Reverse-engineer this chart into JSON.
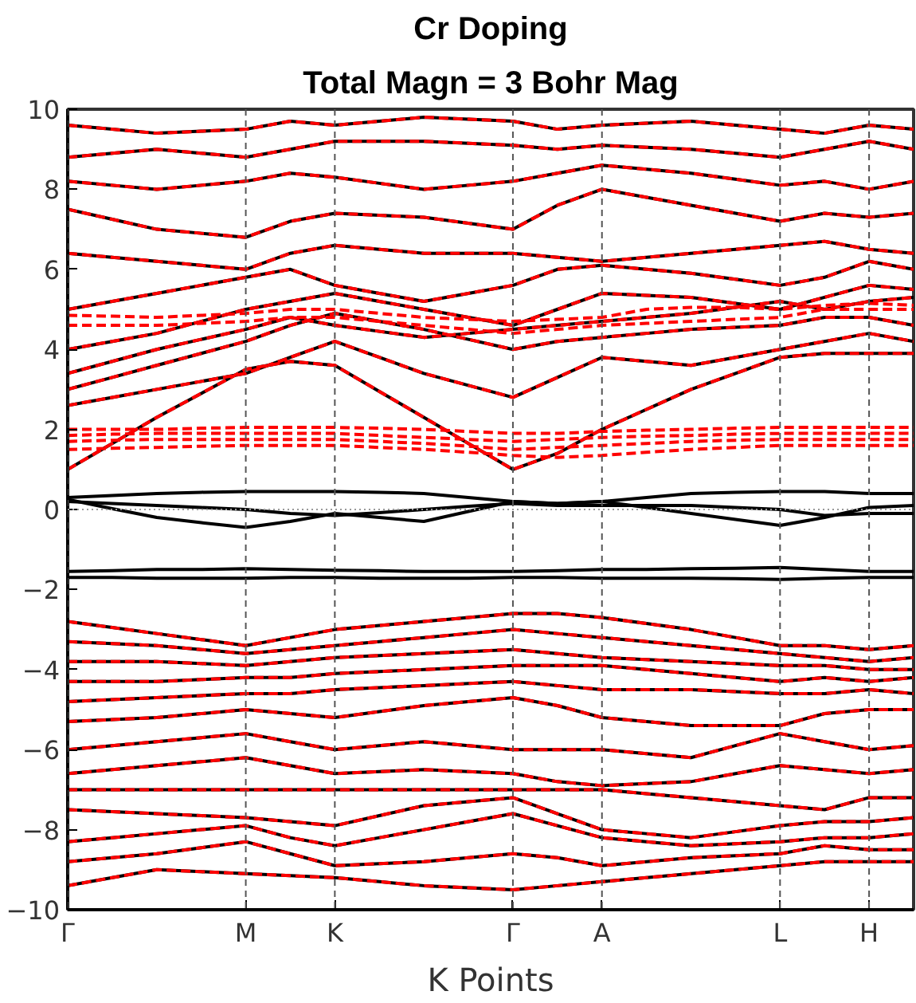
{
  "chart_data": {
    "type": "line",
    "title": "Cr Doping",
    "subtitle": "Total Magn = 3 Bohr Mag",
    "xlabel": "K Points",
    "categories": [
      "Γ",
      null,
      null,
      null,
      "M",
      null,
      "K",
      null,
      null,
      null,
      "Γ",
      null,
      "A",
      null,
      null,
      null,
      "L",
      null,
      "H",
      null
    ],
    "ylim": [
      -10,
      10
    ],
    "yticks": [
      -10,
      -8,
      -6,
      -4,
      -2,
      0,
      2,
      4,
      6,
      8,
      10
    ],
    "grid": "x",
    "ref_lines": [
      {
        "axis": "y",
        "value": 0,
        "color": "#999999",
        "line_style": "dotted"
      }
    ],
    "series": [
      {
        "color": "#000000",
        "line_style": "solid",
        "values": [
          0.3,
          0.35,
          0.4,
          0.43,
          0.45,
          0.45,
          0.45,
          0.43,
          0.4,
          0.3,
          0.2,
          0.15,
          0.2,
          0.3,
          0.4,
          0.43,
          0.45,
          0.45,
          0.4,
          0.4
        ]
      },
      {
        "color": "#000000",
        "line_style": "solid",
        "values": [
          0.25,
          0.02,
          -0.2,
          -0.33,
          -0.45,
          -0.3,
          -0.1,
          -0.2,
          -0.3,
          -0.05,
          0.2,
          0.15,
          0.2,
          0.05,
          -0.1,
          -0.25,
          -0.4,
          -0.2,
          0.05,
          0.1
        ]
      },
      {
        "color": "#000000",
        "line_style": "solid",
        "values": [
          0.2,
          0.15,
          0.1,
          0.05,
          0.0,
          -0.1,
          -0.15,
          -0.08,
          0.0,
          0.08,
          0.15,
          0.1,
          0.1,
          0.1,
          0.1,
          0.05,
          0.0,
          -0.15,
          -0.1,
          -0.1
        ]
      },
      {
        "color": "#000000",
        "line_style": "solid",
        "values": [
          -1.55,
          -1.53,
          -1.5,
          -1.5,
          -1.48,
          -1.5,
          -1.52,
          -1.53,
          -1.55,
          -1.55,
          -1.55,
          -1.53,
          -1.5,
          -1.5,
          -1.48,
          -1.47,
          -1.45,
          -1.5,
          -1.55,
          -1.55
        ]
      },
      {
        "color": "#000000",
        "line_style": "solid",
        "values": [
          -1.7,
          -1.7,
          -1.72,
          -1.72,
          -1.72,
          -1.7,
          -1.7,
          -1.72,
          -1.72,
          -1.72,
          -1.7,
          -1.7,
          -1.72,
          -1.72,
          -1.72,
          -1.73,
          -1.75,
          -1.72,
          -1.7,
          -1.7
        ]
      },
      {
        "color": "#000000",
        "line_style": "solid",
        "values": [
          1.0,
          1.65,
          2.3,
          2.9,
          3.5,
          3.7,
          3.6,
          2.95,
          2.3,
          1.65,
          1.0,
          1.4,
          2.0,
          2.5,
          3.0,
          3.4,
          3.8,
          3.9,
          3.9,
          3.9
        ]
      },
      {
        "color": "#000000",
        "line_style": "solid",
        "values": [
          2.6,
          2.8,
          3.0,
          3.2,
          3.4,
          3.8,
          4.2,
          3.8,
          3.4,
          3.1,
          2.8,
          3.3,
          3.8,
          3.7,
          3.6,
          3.8,
          4.0,
          4.2,
          4.4,
          4.2
        ]
      },
      {
        "color": "#000000",
        "line_style": "solid",
        "values": [
          3.0,
          3.3,
          3.6,
          3.9,
          4.2,
          4.6,
          4.9,
          4.7,
          4.5,
          4.25,
          4.0,
          4.2,
          4.3,
          4.4,
          4.5,
          4.55,
          4.6,
          4.8,
          4.8,
          4.6
        ]
      },
      {
        "color": "#000000",
        "line_style": "solid",
        "values": [
          3.4,
          3.7,
          4.0,
          4.25,
          4.5,
          4.8,
          4.6,
          4.45,
          4.3,
          4.4,
          4.5,
          4.6,
          4.7,
          4.8,
          4.9,
          5.05,
          5.2,
          5.0,
          5.2,
          5.3
        ]
      },
      {
        "color": "#000000",
        "line_style": "solid",
        "values": [
          4.0,
          4.2,
          4.4,
          4.7,
          5.0,
          5.2,
          5.4,
          5.2,
          5.0,
          4.8,
          4.6,
          5.0,
          5.4,
          5.35,
          5.3,
          5.15,
          5.0,
          5.3,
          5.6,
          5.5
        ]
      },
      {
        "color": "#000000",
        "line_style": "solid",
        "values": [
          5.0,
          5.2,
          5.4,
          5.6,
          5.8,
          6.0,
          5.6,
          5.4,
          5.2,
          5.4,
          5.6,
          6.0,
          6.1,
          6.0,
          5.9,
          5.75,
          5.6,
          5.8,
          6.2,
          6.0
        ]
      },
      {
        "color": "#000000",
        "line_style": "solid",
        "values": [
          6.4,
          6.3,
          6.2,
          6.1,
          6.0,
          6.4,
          6.6,
          6.5,
          6.4,
          6.4,
          6.4,
          6.3,
          6.2,
          6.3,
          6.4,
          6.5,
          6.6,
          6.7,
          6.5,
          6.4
        ]
      },
      {
        "color": "#000000",
        "line_style": "solid",
        "values": [
          7.5,
          7.25,
          7.0,
          6.9,
          6.8,
          7.2,
          7.4,
          7.35,
          7.3,
          7.15,
          7.0,
          7.6,
          8.0,
          7.8,
          7.6,
          7.4,
          7.2,
          7.4,
          7.3,
          7.4
        ]
      },
      {
        "color": "#000000",
        "line_style": "solid",
        "values": [
          8.2,
          8.1,
          8.0,
          8.1,
          8.2,
          8.4,
          8.3,
          8.15,
          8.0,
          8.1,
          8.2,
          8.4,
          8.6,
          8.5,
          8.4,
          8.25,
          8.1,
          8.2,
          8.0,
          8.2
        ]
      },
      {
        "color": "#000000",
        "line_style": "solid",
        "values": [
          8.8,
          8.9,
          9.0,
          8.9,
          8.8,
          9.0,
          9.2,
          9.2,
          9.2,
          9.15,
          9.1,
          9.0,
          9.1,
          9.05,
          9.0,
          8.9,
          8.8,
          9.0,
          9.2,
          9.0
        ]
      },
      {
        "color": "#000000",
        "line_style": "solid",
        "values": [
          9.6,
          9.5,
          9.4,
          9.45,
          9.5,
          9.7,
          9.6,
          9.7,
          9.8,
          9.75,
          9.7,
          9.5,
          9.6,
          9.65,
          9.7,
          9.6,
          9.5,
          9.4,
          9.6,
          9.5
        ]
      },
      {
        "color": "#000000",
        "line_style": "solid",
        "values": [
          -2.8,
          -2.95,
          -3.1,
          -3.25,
          -3.4,
          -3.2,
          -3.0,
          -2.9,
          -2.8,
          -2.7,
          -2.6,
          -2.6,
          -2.7,
          -2.85,
          -3.0,
          -3.2,
          -3.4,
          -3.4,
          -3.5,
          -3.4
        ]
      },
      {
        "color": "#000000",
        "line_style": "solid",
        "values": [
          -3.3,
          -3.35,
          -3.4,
          -3.5,
          -3.6,
          -3.5,
          -3.4,
          -3.3,
          -3.2,
          -3.1,
          -3.0,
          -3.1,
          -3.2,
          -3.3,
          -3.4,
          -3.5,
          -3.6,
          -3.7,
          -3.8,
          -3.7
        ]
      },
      {
        "color": "#000000",
        "line_style": "solid",
        "values": [
          -3.8,
          -3.8,
          -3.8,
          -3.85,
          -3.9,
          -3.8,
          -3.7,
          -3.65,
          -3.6,
          -3.55,
          -3.5,
          -3.6,
          -3.7,
          -3.75,
          -3.8,
          -3.85,
          -3.9,
          -3.9,
          -4.0,
          -4.0
        ]
      },
      {
        "color": "#000000",
        "line_style": "solid",
        "values": [
          -4.3,
          -4.3,
          -4.3,
          -4.25,
          -4.2,
          -4.2,
          -4.1,
          -4.05,
          -4.0,
          -3.95,
          -3.9,
          -3.9,
          -3.9,
          -4.0,
          -4.1,
          -4.2,
          -4.3,
          -4.2,
          -4.3,
          -4.2
        ]
      },
      {
        "color": "#000000",
        "line_style": "solid",
        "values": [
          -4.8,
          -4.75,
          -4.7,
          -4.65,
          -4.6,
          -4.6,
          -4.5,
          -4.45,
          -4.4,
          -4.35,
          -4.3,
          -4.4,
          -4.5,
          -4.5,
          -4.5,
          -4.55,
          -4.6,
          -4.6,
          -4.5,
          -4.6
        ]
      },
      {
        "color": "#000000",
        "line_style": "solid",
        "values": [
          -5.3,
          -5.25,
          -5.2,
          -5.1,
          -5.0,
          -5.1,
          -5.2,
          -5.05,
          -4.9,
          -4.8,
          -4.7,
          -4.9,
          -5.2,
          -5.3,
          -5.4,
          -5.4,
          -5.4,
          -5.1,
          -5.0,
          -5.0
        ]
      },
      {
        "color": "#000000",
        "line_style": "solid",
        "values": [
          -6.0,
          -5.9,
          -5.8,
          -5.7,
          -5.6,
          -5.8,
          -6.0,
          -5.9,
          -5.8,
          -5.9,
          -6.0,
          -6.0,
          -6.0,
          -6.1,
          -6.2,
          -5.9,
          -5.6,
          -5.8,
          -6.0,
          -5.9
        ]
      },
      {
        "color": "#000000",
        "line_style": "solid",
        "values": [
          -6.6,
          -6.5,
          -6.4,
          -6.3,
          -6.2,
          -6.4,
          -6.6,
          -6.55,
          -6.5,
          -6.55,
          -6.6,
          -6.8,
          -6.9,
          -6.85,
          -6.8,
          -6.6,
          -6.4,
          -6.5,
          -6.6,
          -6.5
        ]
      },
      {
        "color": "#000000",
        "line_style": "solid",
        "values": [
          -7.0,
          -7.0,
          -7.0,
          -7.0,
          -7.0,
          -7.0,
          -7.0,
          -7.0,
          -7.0,
          -7.0,
          -7.0,
          -7.0,
          -7.0,
          -7.1,
          -7.2,
          -7.3,
          -7.4,
          -7.5,
          -7.2,
          -7.2
        ]
      },
      {
        "color": "#000000",
        "line_style": "solid",
        "values": [
          -7.5,
          -7.55,
          -7.6,
          -7.65,
          -7.7,
          -7.8,
          -7.9,
          -7.65,
          -7.4,
          -7.3,
          -7.2,
          -7.6,
          -8.0,
          -8.1,
          -8.2,
          -8.05,
          -7.9,
          -7.8,
          -7.8,
          -7.7
        ]
      },
      {
        "color": "#000000",
        "line_style": "solid",
        "values": [
          -8.3,
          -8.2,
          -8.1,
          -8.0,
          -7.9,
          -8.2,
          -8.4,
          -8.2,
          -8.0,
          -7.8,
          -7.6,
          -7.9,
          -8.2,
          -8.3,
          -8.4,
          -8.35,
          -8.3,
          -8.2,
          -8.2,
          -8.1
        ]
      },
      {
        "color": "#000000",
        "line_style": "solid",
        "values": [
          -8.8,
          -8.7,
          -8.6,
          -8.45,
          -8.3,
          -8.6,
          -8.9,
          -8.85,
          -8.8,
          -8.7,
          -8.6,
          -8.7,
          -8.9,
          -8.8,
          -8.7,
          -8.65,
          -8.6,
          -8.4,
          -8.5,
          -8.5
        ]
      },
      {
        "color": "#000000",
        "line_style": "solid",
        "values": [
          -9.4,
          -9.2,
          -9.0,
          -9.05,
          -9.1,
          -9.15,
          -9.2,
          -9.3,
          -9.4,
          -9.45,
          -9.5,
          -9.4,
          -9.3,
          -9.2,
          -9.1,
          -9.0,
          -8.9,
          -8.8,
          -8.8,
          -8.8
        ]
      },
      {
        "color": "#ff0000",
        "line_style": "dashed",
        "values": [
          2.0,
          2.0,
          2.0,
          2.03,
          2.05,
          2.05,
          2.05,
          2.03,
          2.0,
          1.95,
          1.9,
          1.9,
          1.95,
          1.98,
          2.0,
          2.03,
          2.05,
          2.05,
          2.05,
          2.05
        ]
      },
      {
        "color": "#ff0000",
        "line_style": "dashed",
        "values": [
          1.85,
          1.88,
          1.9,
          1.9,
          1.9,
          1.9,
          1.9,
          1.85,
          1.8,
          1.75,
          1.7,
          1.75,
          1.8,
          1.83,
          1.85,
          1.88,
          1.9,
          1.9,
          1.9,
          1.9
        ]
      },
      {
        "color": "#ff0000",
        "line_style": "dashed",
        "values": [
          1.7,
          1.73,
          1.75,
          1.75,
          1.75,
          1.75,
          1.75,
          1.7,
          1.65,
          1.58,
          1.5,
          1.55,
          1.6,
          1.65,
          1.7,
          1.73,
          1.75,
          1.75,
          1.75,
          1.75
        ]
      },
      {
        "color": "#ff0000",
        "line_style": "dashed",
        "values": [
          1.5,
          1.53,
          1.55,
          1.58,
          1.6,
          1.6,
          1.6,
          1.55,
          1.5,
          1.43,
          1.35,
          1.3,
          1.35,
          1.43,
          1.5,
          1.55,
          1.6,
          1.6,
          1.6,
          1.6
        ]
      },
      {
        "color": "#ff0000",
        "line_style": "dashed",
        "values": [
          4.6,
          4.6,
          4.6,
          4.65,
          4.7,
          4.8,
          4.8,
          4.7,
          4.6,
          4.5,
          4.4,
          4.5,
          4.6,
          4.65,
          4.7,
          4.75,
          4.8,
          5.0,
          5.0,
          5.0
        ]
      },
      {
        "color": "#ff0000",
        "line_style": "dashed",
        "values": [
          4.85,
          4.83,
          4.8,
          4.85,
          4.9,
          5.0,
          5.0,
          4.9,
          4.8,
          4.75,
          4.7,
          4.75,
          4.8,
          5.0,
          5.05,
          5.05,
          5.0,
          5.1,
          5.15,
          5.1
        ]
      },
      {
        "color": "#ff0000",
        "line_style": "dashed",
        "values": [
          1.0,
          1.65,
          2.3,
          2.9,
          3.5,
          3.7,
          3.6,
          2.95,
          2.3,
          1.65,
          1.0,
          1.4,
          2.0,
          2.5,
          3.0,
          3.4,
          3.8,
          3.9,
          3.9,
          3.9
        ]
      },
      {
        "color": "#ff0000",
        "line_style": "dashed",
        "values": [
          2.6,
          2.8,
          3.0,
          3.2,
          3.4,
          3.8,
          4.2,
          3.8,
          3.4,
          3.1,
          2.8,
          3.3,
          3.8,
          3.7,
          3.6,
          3.8,
          4.0,
          4.2,
          4.4,
          4.2
        ]
      },
      {
        "color": "#ff0000",
        "line_style": "dashed",
        "values": [
          3.0,
          3.3,
          3.6,
          3.9,
          4.2,
          4.6,
          4.9,
          4.7,
          4.5,
          4.25,
          4.0,
          4.2,
          4.3,
          4.4,
          4.5,
          4.55,
          4.6,
          4.8,
          4.8,
          4.6
        ]
      },
      {
        "color": "#ff0000",
        "line_style": "dashed",
        "values": [
          3.4,
          3.7,
          4.0,
          4.25,
          4.5,
          4.8,
          4.6,
          4.45,
          4.3,
          4.4,
          4.5,
          4.6,
          4.7,
          4.8,
          4.9,
          5.05,
          5.2,
          5.0,
          5.2,
          5.3
        ]
      },
      {
        "color": "#ff0000",
        "line_style": "dashed",
        "values": [
          4.0,
          4.2,
          4.4,
          4.7,
          5.0,
          5.2,
          5.4,
          5.2,
          5.0,
          4.8,
          4.6,
          5.0,
          5.4,
          5.35,
          5.3,
          5.15,
          5.0,
          5.3,
          5.6,
          5.5
        ]
      },
      {
        "color": "#ff0000",
        "line_style": "dashed",
        "values": [
          5.0,
          5.2,
          5.4,
          5.6,
          5.8,
          6.0,
          5.6,
          5.4,
          5.2,
          5.4,
          5.6,
          6.0,
          6.1,
          6.0,
          5.9,
          5.75,
          5.6,
          5.8,
          6.2,
          6.0
        ]
      },
      {
        "color": "#ff0000",
        "line_style": "dashed",
        "values": [
          6.4,
          6.3,
          6.2,
          6.1,
          6.0,
          6.4,
          6.6,
          6.5,
          6.4,
          6.4,
          6.4,
          6.3,
          6.2,
          6.3,
          6.4,
          6.5,
          6.6,
          6.7,
          6.5,
          6.4
        ]
      },
      {
        "color": "#ff0000",
        "line_style": "dashed",
        "values": [
          7.5,
          7.25,
          7.0,
          6.9,
          6.8,
          7.2,
          7.4,
          7.35,
          7.3,
          7.15,
          7.0,
          7.6,
          8.0,
          7.8,
          7.6,
          7.4,
          7.2,
          7.4,
          7.3,
          7.4
        ]
      },
      {
        "color": "#ff0000",
        "line_style": "dashed",
        "values": [
          8.2,
          8.1,
          8.0,
          8.1,
          8.2,
          8.4,
          8.3,
          8.15,
          8.0,
          8.1,
          8.2,
          8.4,
          8.6,
          8.5,
          8.4,
          8.25,
          8.1,
          8.2,
          8.0,
          8.2
        ]
      },
      {
        "color": "#ff0000",
        "line_style": "dashed",
        "values": [
          8.8,
          8.9,
          9.0,
          8.9,
          8.8,
          9.0,
          9.2,
          9.2,
          9.2,
          9.15,
          9.1,
          9.0,
          9.1,
          9.05,
          9.0,
          8.9,
          8.8,
          9.0,
          9.2,
          9.0
        ]
      },
      {
        "color": "#ff0000",
        "line_style": "dashed",
        "values": [
          9.6,
          9.5,
          9.4,
          9.45,
          9.5,
          9.7,
          9.6,
          9.7,
          9.8,
          9.75,
          9.7,
          9.5,
          9.6,
          9.65,
          9.7,
          9.6,
          9.5,
          9.4,
          9.6,
          9.5
        ]
      },
      {
        "color": "#ff0000",
        "line_style": "dashed",
        "values": [
          -2.8,
          -2.95,
          -3.1,
          -3.25,
          -3.4,
          -3.2,
          -3.0,
          -2.9,
          -2.8,
          -2.7,
          -2.6,
          -2.6,
          -2.7,
          -2.85,
          -3.0,
          -3.2,
          -3.4,
          -3.4,
          -3.5,
          -3.4
        ]
      },
      {
        "color": "#ff0000",
        "line_style": "dashed",
        "values": [
          -3.3,
          -3.35,
          -3.4,
          -3.5,
          -3.6,
          -3.5,
          -3.4,
          -3.3,
          -3.2,
          -3.1,
          -3.0,
          -3.1,
          -3.2,
          -3.3,
          -3.4,
          -3.5,
          -3.6,
          -3.7,
          -3.8,
          -3.7
        ]
      },
      {
        "color": "#ff0000",
        "line_style": "dashed",
        "values": [
          -3.8,
          -3.8,
          -3.8,
          -3.85,
          -3.9,
          -3.8,
          -3.7,
          -3.65,
          -3.6,
          -3.55,
          -3.5,
          -3.6,
          -3.7,
          -3.75,
          -3.8,
          -3.85,
          -3.9,
          -3.9,
          -4.0,
          -4.0
        ]
      },
      {
        "color": "#ff0000",
        "line_style": "dashed",
        "values": [
          -4.3,
          -4.3,
          -4.3,
          -4.25,
          -4.2,
          -4.2,
          -4.1,
          -4.05,
          -4.0,
          -3.95,
          -3.9,
          -3.9,
          -3.9,
          -4.0,
          -4.1,
          -4.2,
          -4.3,
          -4.2,
          -4.3,
          -4.2
        ]
      },
      {
        "color": "#ff0000",
        "line_style": "dashed",
        "values": [
          -4.8,
          -4.75,
          -4.7,
          -4.65,
          -4.6,
          -4.6,
          -4.5,
          -4.45,
          -4.4,
          -4.35,
          -4.3,
          -4.4,
          -4.5,
          -4.5,
          -4.5,
          -4.55,
          -4.6,
          -4.6,
          -4.5,
          -4.6
        ]
      },
      {
        "color": "#ff0000",
        "line_style": "dashed",
        "values": [
          -5.3,
          -5.25,
          -5.2,
          -5.1,
          -5.0,
          -5.1,
          -5.2,
          -5.05,
          -4.9,
          -4.8,
          -4.7,
          -4.9,
          -5.2,
          -5.3,
          -5.4,
          -5.4,
          -5.4,
          -5.1,
          -5.0,
          -5.0
        ]
      },
      {
        "color": "#ff0000",
        "line_style": "dashed",
        "values": [
          -6.0,
          -5.9,
          -5.8,
          -5.7,
          -5.6,
          -5.8,
          -6.0,
          -5.9,
          -5.8,
          -5.9,
          -6.0,
          -6.0,
          -6.0,
          -6.1,
          -6.2,
          -5.9,
          -5.6,
          -5.8,
          -6.0,
          -5.9
        ]
      },
      {
        "color": "#ff0000",
        "line_style": "dashed",
        "values": [
          -6.6,
          -6.5,
          -6.4,
          -6.3,
          -6.2,
          -6.4,
          -6.6,
          -6.55,
          -6.5,
          -6.55,
          -6.6,
          -6.8,
          -6.9,
          -6.85,
          -6.8,
          -6.6,
          -6.4,
          -6.5,
          -6.6,
          -6.5
        ]
      },
      {
        "color": "#ff0000",
        "line_style": "dashed",
        "values": [
          -7.0,
          -7.0,
          -7.0,
          -7.0,
          -7.0,
          -7.0,
          -7.0,
          -7.0,
          -7.0,
          -7.0,
          -7.0,
          -7.0,
          -7.0,
          -7.1,
          -7.2,
          -7.3,
          -7.4,
          -7.5,
          -7.2,
          -7.2
        ]
      },
      {
        "color": "#ff0000",
        "line_style": "dashed",
        "values": [
          -7.5,
          -7.55,
          -7.6,
          -7.65,
          -7.7,
          -7.8,
          -7.9,
          -7.65,
          -7.4,
          -7.3,
          -7.2,
          -7.6,
          -8.0,
          -8.1,
          -8.2,
          -8.05,
          -7.9,
          -7.8,
          -7.8,
          -7.7
        ]
      },
      {
        "color": "#ff0000",
        "line_style": "dashed",
        "values": [
          -8.3,
          -8.2,
          -8.1,
          -8.0,
          -7.9,
          -8.2,
          -8.4,
          -8.2,
          -8.0,
          -7.8,
          -7.6,
          -7.9,
          -8.2,
          -8.3,
          -8.4,
          -8.35,
          -8.3,
          -8.2,
          -8.2,
          -8.1
        ]
      },
      {
        "color": "#ff0000",
        "line_style": "dashed",
        "values": [
          -8.8,
          -8.7,
          -8.6,
          -8.45,
          -8.3,
          -8.6,
          -8.9,
          -8.85,
          -8.8,
          -8.7,
          -8.6,
          -8.7,
          -8.9,
          -8.8,
          -8.7,
          -8.65,
          -8.6,
          -8.4,
          -8.5,
          -8.5
        ]
      },
      {
        "color": "#ff0000",
        "line_style": "dashed",
        "values": [
          -9.4,
          -9.2,
          -9.0,
          -9.05,
          -9.1,
          -9.15,
          -9.2,
          -9.3,
          -9.4,
          -9.45,
          -9.5,
          -9.4,
          -9.3,
          -9.2,
          -9.1,
          -9.0,
          -8.9,
          -8.8,
          -8.8,
          -8.8
        ]
      }
    ]
  }
}
